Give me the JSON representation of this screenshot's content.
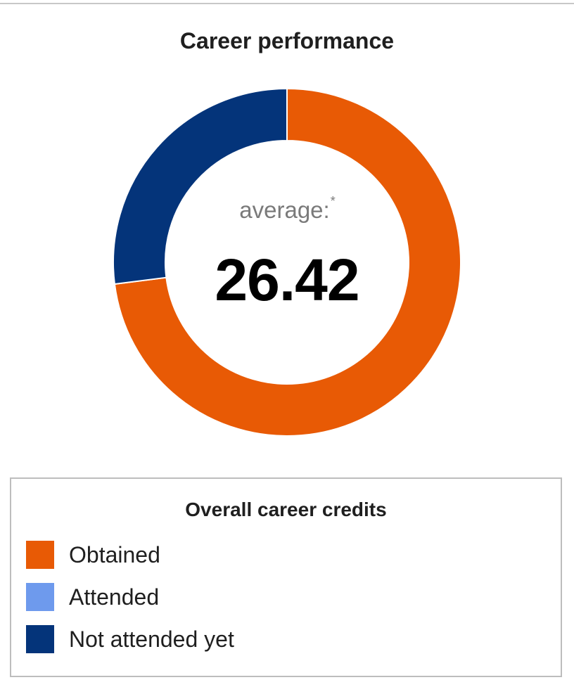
{
  "chart_title": "Career performance",
  "center": {
    "label": "average:",
    "label_mark": "*",
    "value": "26.42"
  },
  "legend": {
    "title": "Overall career credits",
    "items": [
      {
        "label": "Obtained",
        "color": "#e85a05"
      },
      {
        "label": "Attended",
        "color": "#6e9aed"
      },
      {
        "label": "Not attended yet",
        "color": "#04347a"
      }
    ]
  },
  "chart_data": {
    "type": "pie",
    "variant": "donut",
    "title": "Career performance",
    "series": [
      {
        "name": "Obtained",
        "value": 73,
        "color": "#e85a05"
      },
      {
        "name": "Attended",
        "value": 0,
        "color": "#6e9aed"
      },
      {
        "name": "Not attended yet",
        "value": 27,
        "color": "#04347a"
      }
    ],
    "legend_position": "bottom",
    "center_text": "26.42"
  }
}
